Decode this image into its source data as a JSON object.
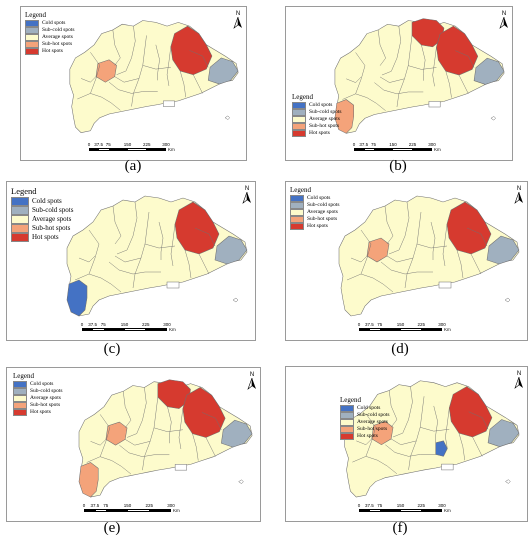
{
  "colors": {
    "cold": "#4472c4",
    "sub_cold": "#a0b0bf",
    "average": "#fdfbcc",
    "sub_hot": "#f4a37a",
    "hot": "#d63a2f",
    "border": "#6f6f6f"
  },
  "legend": {
    "title": "Legend",
    "items": [
      {
        "key": "cold",
        "label": "Cold spots"
      },
      {
        "key": "sub_cold",
        "label": "Sub-cold spots"
      },
      {
        "key": "average",
        "label": "Average spots"
      },
      {
        "key": "sub_hot",
        "label": "Sub-hot spots"
      },
      {
        "key": "hot",
        "label": "Hot spots"
      }
    ]
  },
  "north_label": "N",
  "scale": {
    "ticks": [
      "0",
      "37.5",
      "75",
      "150",
      "225",
      "300"
    ],
    "unit": "Km"
  },
  "panels": [
    {
      "caption": "(a)",
      "classes": {
        "ne": "hot",
        "east": "sub_cold",
        "west": "sub_hot"
      }
    },
    {
      "caption": "(b)",
      "classes": {
        "north": "hot",
        "ne": "hot",
        "east": "sub_cold",
        "sw": "sub_hot"
      }
    },
    {
      "caption": "(c)",
      "classes": {
        "ne": "hot",
        "east": "sub_cold",
        "sw": "cold"
      }
    },
    {
      "caption": "(d)",
      "classes": {
        "ne": "hot",
        "east": "sub_cold",
        "west": "sub_hot"
      }
    },
    {
      "caption": "(e)",
      "classes": {
        "north": "hot",
        "ne": "hot",
        "east": "sub_cold",
        "west": "sub_hot",
        "sw": "sub_hot"
      }
    },
    {
      "caption": "(f)",
      "classes": {
        "ne": "hot",
        "east": "sub_cold",
        "west": "sub_hot",
        "center": "cold"
      }
    }
  ]
}
